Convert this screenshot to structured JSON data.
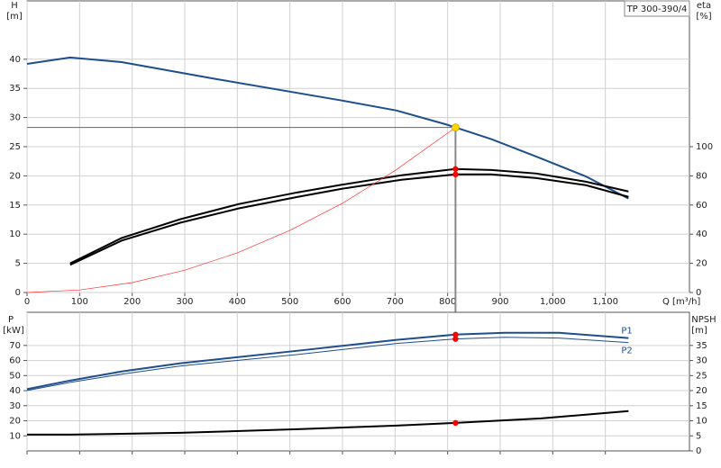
{
  "chart_data": [
    {
      "type": "line",
      "title": "TP 300-390/4",
      "x_label": "Q [m³/h]",
      "y_label": "H",
      "y_unit": "[m]",
      "y2_label": "eta",
      "y2_unit": "[%]",
      "xlim": [
        0,
        1260
      ],
      "xticks": [
        0,
        100,
        200,
        300,
        400,
        500,
        600,
        700,
        800,
        900,
        {
          "value": 1000,
          "label": "1,000"
        },
        {
          "value": 1100,
          "label": "1,100"
        }
      ],
      "ylim": [
        0,
        50
      ],
      "yticks": [
        0,
        5,
        10,
        15,
        20,
        25,
        30,
        35,
        40
      ],
      "y2lim": [
        0,
        200
      ],
      "y2ticks": [
        0,
        20,
        40,
        60,
        80,
        100
      ],
      "grid": true,
      "series": [
        {
          "color": "#1f4e8c",
          "width": 2,
          "x": [
            0,
            82,
            180,
            360,
            600,
            703,
            798,
            883,
            969,
            1063,
            1144
          ],
          "values": [
            39.2,
            40.3,
            39.5,
            36.6,
            32.9,
            31.2,
            28.8,
            26.3,
            23.3,
            19.9,
            16.1
          ]
        },
        {
          "color": "#000000",
          "width": 2,
          "axis": "y2",
          "x": [
            82,
            180,
            292,
            403,
            515,
            600,
            712,
            815,
            883,
            969,
            1063,
            1144
          ],
          "values": [
            20,
            37.4,
            50.3,
            60.7,
            68.7,
            74,
            80.4,
            84.7,
            84,
            81.6,
            76,
            69.3
          ]
        },
        {
          "color": "#000000",
          "width": 2,
          "axis": "y2",
          "x": [
            82,
            180,
            292,
            403,
            515,
            600,
            712,
            815,
            883,
            969,
            1063,
            1144
          ],
          "values": [
            19,
            35.6,
            47.9,
            57.7,
            65.6,
            71.2,
            77.3,
            81,
            81,
            78.5,
            73.6,
            65.6
          ]
        },
        {
          "color": "#ff3030",
          "width": 0.7,
          "x": [
            0,
            100,
            200,
            300,
            400,
            500,
            600,
            700,
            815
          ],
          "values": [
            0,
            0.43,
            1.7,
            3.83,
            6.8,
            10.65,
            15.3,
            20.9,
            28.3
          ]
        }
      ],
      "operating_point": {
        "x": 815,
        "y": 28.3,
        "color": "#ffd700"
      },
      "marker_color": "#ff0000",
      "markers": [
        {
          "x": 815,
          "values": [
            84.7,
            81
          ],
          "axis": "y2"
        }
      ]
    },
    {
      "type": "line",
      "y_label": "P",
      "y_unit": "[kW]",
      "y2_label": "NPSH",
      "y2_unit": "[m]",
      "xlim": [
        0,
        1260
      ],
      "ylim": [
        0,
        92
      ],
      "yticks": [
        10,
        20,
        30,
        40,
        50,
        60,
        70
      ],
      "y2lim": [
        0,
        46
      ],
      "y2ticks": [
        0,
        5,
        10,
        15,
        20,
        25,
        30,
        35
      ],
      "grid": true,
      "series": [
        {
          "name": "P1",
          "color": "#1f4e8c",
          "width": 2,
          "x": [
            0,
            82,
            180,
            292,
            515,
            703,
            815,
            909,
            1012,
            1144
          ],
          "values": [
            41,
            46.7,
            52.7,
            58.2,
            66.5,
            73.7,
            77.2,
            78.4,
            78.4,
            74.9
          ]
        },
        {
          "name": "P2",
          "color": "#1f4e8c",
          "width": 1,
          "x": [
            0,
            82,
            180,
            292,
            515,
            703,
            815,
            909,
            1012,
            1144
          ],
          "values": [
            40.1,
            45.5,
            50.9,
            56.4,
            64,
            71.3,
            74.3,
            75.4,
            74.9,
            71.9
          ]
        },
        {
          "color": "#000000",
          "width": 2,
          "axis": "y2",
          "x": [
            0,
            82,
            292,
            515,
            703,
            815,
            978,
            1144
          ],
          "values": [
            5.4,
            5.4,
            6,
            7.2,
            8.4,
            9.3,
            10.8,
            13.2
          ]
        }
      ],
      "marker_color": "#ff0000",
      "markers": [
        {
          "x": 815,
          "values": [
            77.2,
            74.3
          ]
        },
        {
          "x": 815,
          "values": [
            9.3
          ],
          "axis": "y2"
        }
      ]
    }
  ]
}
